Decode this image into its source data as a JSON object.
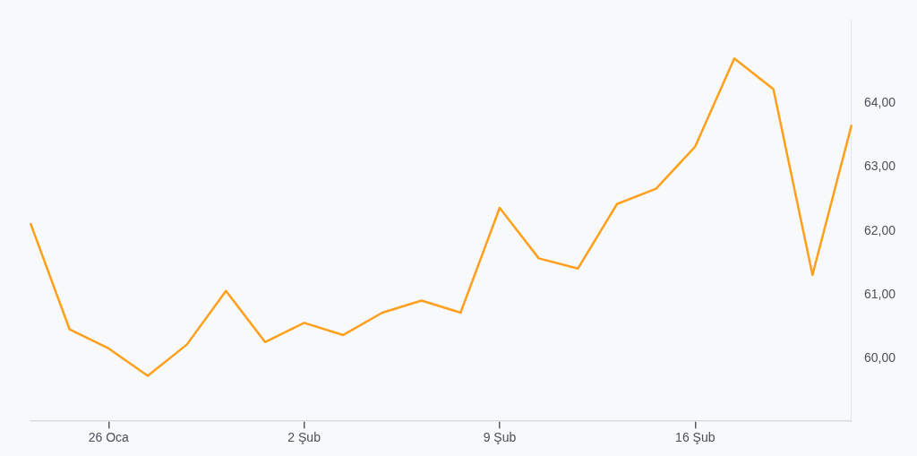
{
  "chart_data": {
    "type": "line",
    "categories": [
      null,
      null,
      "26 Oca",
      null,
      null,
      null,
      null,
      "2 Şub",
      null,
      null,
      null,
      null,
      "9 Şub",
      null,
      null,
      null,
      null,
      "16 Şub",
      null,
      null,
      null,
      null
    ],
    "series": [
      {
        "color": "#ff9f1c",
        "values": [
          62.12,
          60.46,
          60.16,
          59.73,
          60.22,
          61.06,
          60.26,
          60.56,
          60.37,
          60.72,
          60.91,
          60.72,
          62.36,
          61.57,
          61.41,
          62.42,
          62.66,
          63.32,
          64.7,
          64.22,
          61.31,
          63.66
        ]
      }
    ],
    "ylim": [
      59.02,
      65.3
    ],
    "yticks": [
      {
        "value": 60,
        "label": "60,00"
      },
      {
        "value": 61,
        "label": "61,00"
      },
      {
        "value": 62,
        "label": "62,00"
      },
      {
        "value": 63,
        "label": "63,00"
      },
      {
        "value": 64,
        "label": "64,00"
      }
    ],
    "grid": false,
    "legend": false,
    "marker": "none",
    "line_style": "solid"
  }
}
